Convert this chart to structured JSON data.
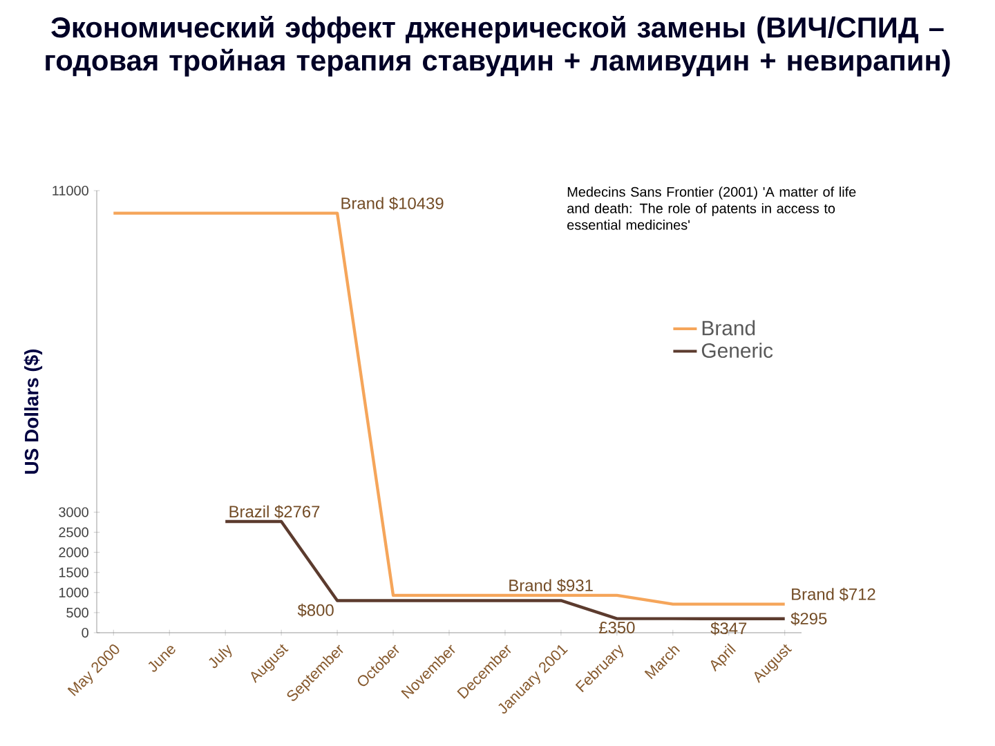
{
  "chart_data": {
    "type": "line",
    "title": "Экономический эффект дженерической замены (ВИЧ/СПИД – годовая тройная терапия ставудин + ламивудин + невирапин)",
    "ylabel": "US Dollars ($)",
    "categories": [
      "May 2000",
      "June",
      "July",
      "August",
      "September",
      "October",
      "November",
      "December",
      "January 2001",
      "February",
      "March",
      "April",
      "August"
    ],
    "series": [
      {
        "name": "Brand",
        "color": "#f5a55a",
        "values": [
          10439,
          10439,
          10439,
          10439,
          10439,
          931,
          931,
          931,
          931,
          931,
          712,
          712,
          712
        ]
      },
      {
        "name": "Generic",
        "color": "#5c3b2e",
        "values": [
          null,
          null,
          2767,
          2767,
          800,
          800,
          800,
          800,
          800,
          350,
          350,
          347,
          347
        ]
      }
    ],
    "ylim": [
      0,
      11000
    ],
    "yticks": [
      0,
      500,
      1000,
      1500,
      2000,
      2500,
      3000,
      11000
    ],
    "legend": "right",
    "grid": false,
    "annotations": [
      {
        "text": "Brand $10439",
        "x": "September",
        "y": 10439
      },
      {
        "text": "Brazil $2767",
        "x": "July",
        "y": 2767
      },
      {
        "text": "$800",
        "x": "September",
        "y": 800
      },
      {
        "text": "Brand $931",
        "x": "December",
        "y": 931
      },
      {
        "text": "£350",
        "x": "February",
        "y": 350
      },
      {
        "text": "$347",
        "x": "April",
        "y": 347
      },
      "Brand $712",
      "$295",
      "Medecins Sans Frontier (2001) 'A matter of life and death: The role of patents in access to essential medicines'"
    ]
  }
}
